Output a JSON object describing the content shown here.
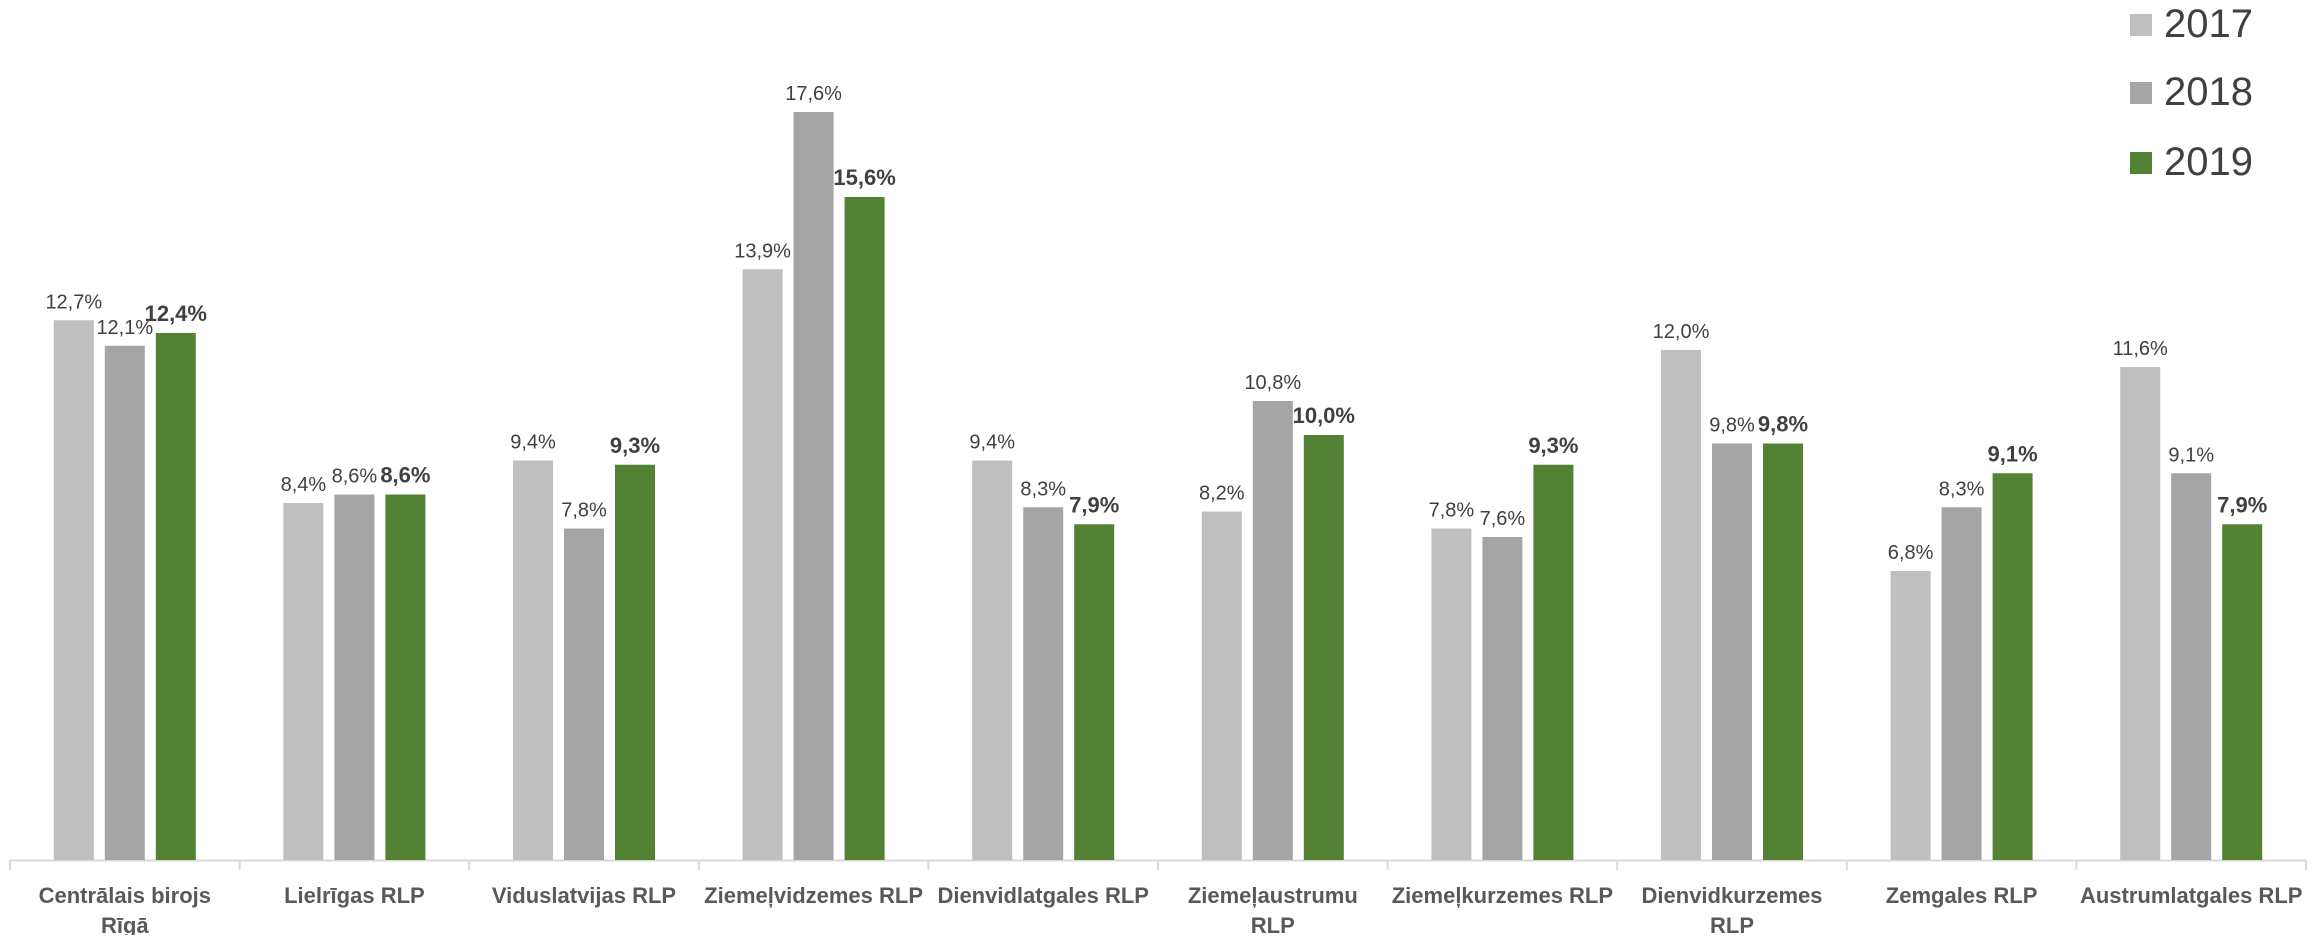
{
  "chart_data": {
    "type": "bar",
    "title": "",
    "xlabel": "",
    "ylabel": "",
    "ylim": [
      0,
      18.5
    ],
    "grid": false,
    "legend_position": "top-right",
    "categories": [
      "Centrālais birojs Rīgā",
      "Lielrīgas RLP",
      "Viduslatvijas RLP",
      "Ziemeļvidzemes RLP",
      "Dienvidlatgales RLP",
      "Ziemeļaustrumu RLP",
      "Ziemeļkurzemes RLP",
      "Dienvidkurzemes RLP",
      "Zemgales RLP",
      "Austrumlatgales RLP"
    ],
    "category_lines": [
      [
        "Centrālais birojs",
        "Rīgā"
      ],
      [
        "Lielrīgas RLP"
      ],
      [
        "Viduslatvijas RLP"
      ],
      [
        "Ziemeļvidzemes RLP"
      ],
      [
        "Dienvidlatgales RLP"
      ],
      [
        "Ziemeļaustrumu",
        "RLP"
      ],
      [
        "Ziemeļkurzemes RLP"
      ],
      [
        "Dienvidkurzemes",
        "RLP"
      ],
      [
        "Zemgales RLP"
      ],
      [
        "Austrumlatgales RLP"
      ]
    ],
    "series": [
      {
        "name": "2017",
        "color": "#bfbfbf",
        "values": [
          12.7,
          8.4,
          9.4,
          13.9,
          9.4,
          8.2,
          7.8,
          12.0,
          6.8,
          11.6
        ],
        "labels": [
          "12,7%",
          "8,4%",
          "9,4%",
          "13,9%",
          "9,4%",
          "8,2%",
          "7,8%",
          "12,0%",
          "6,8%",
          "11,6%"
        ],
        "label_bold": false
      },
      {
        "name": "2018",
        "color": "#a5a5a5",
        "values": [
          12.1,
          8.6,
          7.8,
          17.6,
          8.3,
          10.8,
          7.6,
          9.8,
          8.3,
          9.1
        ],
        "labels": [
          "12,1%",
          "8,6%",
          "7,8%",
          "17,6%",
          "8,3%",
          "10,8%",
          "7,6%",
          "9,8%",
          "8,3%",
          "9,1%"
        ],
        "label_bold": false
      },
      {
        "name": "2019",
        "color": "#548235",
        "values": [
          12.4,
          8.6,
          9.3,
          15.6,
          7.9,
          10.0,
          9.3,
          9.8,
          9.1,
          7.9
        ],
        "labels": [
          "12,4%",
          "8,6%",
          "9,3%",
          "15,6%",
          "7,9%",
          "10,0%",
          "9,3%",
          "9,8%",
          "9,1%",
          "7,9%"
        ],
        "label_bold": true
      }
    ],
    "colors": {
      "axis": "#d9d9d9",
      "label_text": "#404040",
      "category_text": "#595959"
    }
  }
}
